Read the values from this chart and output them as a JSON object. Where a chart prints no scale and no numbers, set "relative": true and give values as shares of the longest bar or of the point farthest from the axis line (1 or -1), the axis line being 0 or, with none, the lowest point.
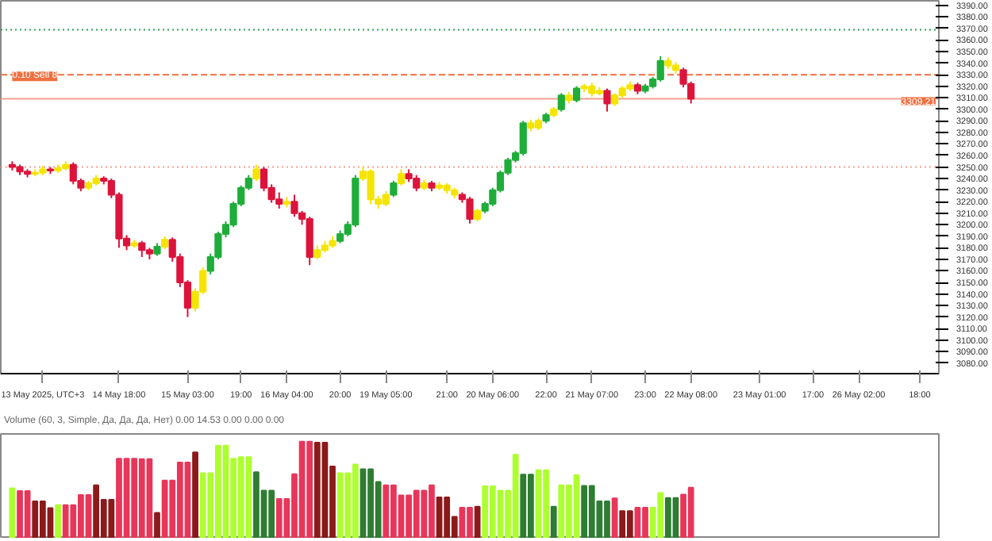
{
  "chart_data": [
    {
      "type": "candlestick",
      "categories": [
        null,
        null,
        null,
        null,
        "13 May 2025, UTC+3",
        null,
        null,
        null,
        null,
        null,
        null,
        null,
        null,
        null,
        "14 May 18:00",
        null,
        null,
        null,
        null,
        null,
        null,
        null,
        null,
        "15 May 03:00",
        null,
        null,
        null,
        null,
        null,
        null,
        "19:00",
        null,
        null,
        null,
        null,
        null,
        "16 May 04:00",
        null,
        null,
        null,
        null,
        null,
        null,
        "20:00",
        null,
        null,
        null,
        null,
        null,
        "19 May 05:00",
        null,
        null,
        null,
        null,
        null,
        null,
        null,
        "21:00",
        null,
        null,
        null,
        null,
        null,
        "20 May 06:00",
        null,
        null,
        null,
        null,
        null,
        null,
        "22:00",
        null,
        null,
        null,
        null,
        null,
        "21 May 07:00",
        null,
        null,
        null,
        null,
        null,
        null,
        "23:00",
        null,
        null,
        null,
        null,
        null,
        "22 May 08:00",
        null,
        null,
        null,
        null,
        null,
        null,
        null,
        null,
        "23 May 01:00",
        null,
        null,
        null,
        null,
        null,
        null,
        "17:00",
        null,
        null,
        null,
        null,
        null,
        "26 May 02:00",
        null,
        null,
        null,
        null,
        null,
        null,
        null,
        "18:00",
        null,
        null
      ],
      "ohlc": [
        [
          3252,
          3255,
          3247,
          3250
        ],
        [
          3250,
          3252,
          3243,
          3246
        ],
        [
          3246,
          3248,
          3241,
          3244
        ],
        [
          3244,
          3248,
          3242,
          3245
        ],
        [
          3245,
          3251,
          3243,
          3248
        ],
        [
          3248,
          3250,
          3244,
          3247
        ],
        [
          3247,
          3252,
          3245,
          3249
        ],
        [
          3249,
          3255,
          3247,
          3252
        ],
        [
          3252,
          3254,
          3235,
          3238
        ],
        [
          3238,
          3240,
          3229,
          3232
        ],
        [
          3232,
          3238,
          3230,
          3236
        ],
        [
          3236,
          3243,
          3234,
          3240
        ],
        [
          3240,
          3242,
          3235,
          3238
        ],
        [
          3238,
          3240,
          3223,
          3226
        ],
        [
          3226,
          3228,
          3180,
          3188
        ],
        [
          3188,
          3191,
          3178,
          3182
        ],
        [
          3182,
          3187,
          3180,
          3184
        ],
        [
          3184,
          3186,
          3172,
          3178
        ],
        [
          3178,
          3180,
          3170,
          3175
        ],
        [
          3175,
          3184,
          3173,
          3181
        ],
        [
          3181,
          3190,
          3179,
          3187
        ],
        [
          3187,
          3189,
          3168,
          3172
        ],
        [
          3172,
          3175,
          3146,
          3150
        ],
        [
          3150,
          3152,
          3120,
          3128
        ],
        [
          3128,
          3145,
          3125,
          3142
        ],
        [
          3142,
          3163,
          3140,
          3160
        ],
        [
          3160,
          3175,
          3157,
          3172
        ],
        [
          3172,
          3194,
          3170,
          3192
        ],
        [
          3192,
          3203,
          3189,
          3200
        ],
        [
          3200,
          3220,
          3198,
          3218
        ],
        [
          3218,
          3234,
          3216,
          3232
        ],
        [
          3232,
          3243,
          3230,
          3240
        ],
        [
          3240,
          3252,
          3238,
          3248
        ],
        [
          3248,
          3250,
          3229,
          3232
        ],
        [
          3232,
          3235,
          3219,
          3222
        ],
        [
          3222,
          3228,
          3214,
          3218
        ],
        [
          3218,
          3224,
          3215,
          3220
        ],
        [
          3220,
          3226,
          3207,
          3210
        ],
        [
          3210,
          3212,
          3200,
          3205
        ],
        [
          3205,
          3207,
          3165,
          3172
        ],
        [
          3172,
          3182,
          3170,
          3178
        ],
        [
          3178,
          3186,
          3176,
          3182
        ],
        [
          3182,
          3190,
          3180,
          3186
        ],
        [
          3186,
          3195,
          3184,
          3192
        ],
        [
          3192,
          3203,
          3190,
          3200
        ],
        [
          3200,
          3243,
          3198,
          3240
        ],
        [
          3240,
          3250,
          3238,
          3246
        ],
        [
          3246,
          3248,
          3218,
          3222
        ],
        [
          3222,
          3225,
          3214,
          3218
        ],
        [
          3218,
          3229,
          3216,
          3226
        ],
        [
          3226,
          3238,
          3224,
          3236
        ],
        [
          3236,
          3248,
          3234,
          3244
        ],
        [
          3244,
          3248,
          3237,
          3240
        ],
        [
          3240,
          3243,
          3229,
          3232
        ],
        [
          3232,
          3239,
          3230,
          3236
        ],
        [
          3236,
          3238,
          3229,
          3232
        ],
        [
          3232,
          3237,
          3230,
          3234
        ],
        [
          3234,
          3236,
          3227,
          3230
        ],
        [
          3230,
          3232,
          3223,
          3226
        ],
        [
          3226,
          3228,
          3219,
          3222
        ],
        [
          3222,
          3224,
          3201,
          3205
        ],
        [
          3205,
          3214,
          3203,
          3212
        ],
        [
          3212,
          3220,
          3210,
          3218
        ],
        [
          3218,
          3232,
          3216,
          3230
        ],
        [
          3230,
          3247,
          3228,
          3245
        ],
        [
          3245,
          3258,
          3243,
          3256
        ],
        [
          3256,
          3264,
          3254,
          3262
        ],
        [
          3262,
          3290,
          3260,
          3288
        ],
        [
          3288,
          3291,
          3281,
          3284
        ],
        [
          3284,
          3292,
          3282,
          3290
        ],
        [
          3290,
          3297,
          3288,
          3295
        ],
        [
          3295,
          3302,
          3293,
          3300
        ],
        [
          3300,
          3314,
          3298,
          3312
        ],
        [
          3312,
          3315,
          3305,
          3308
        ],
        [
          3308,
          3320,
          3306,
          3318
        ],
        [
          3318,
          3322,
          3315,
          3320
        ],
        [
          3320,
          3323,
          3311,
          3314
        ],
        [
          3314,
          3319,
          3312,
          3316
        ],
        [
          3316,
          3318,
          3298,
          3305
        ],
        [
          3305,
          3314,
          3303,
          3312
        ],
        [
          3312,
          3320,
          3310,
          3318
        ],
        [
          3318,
          3324,
          3316,
          3321
        ],
        [
          3321,
          3323,
          3313,
          3316
        ],
        [
          3316,
          3322,
          3314,
          3320
        ],
        [
          3320,
          3328,
          3318,
          3326
        ],
        [
          3326,
          3346,
          3324,
          3342
        ],
        [
          3342,
          3345,
          3335,
          3338
        ],
        [
          3338,
          3341,
          3331,
          3334
        ],
        [
          3334,
          3336,
          3319,
          3322
        ],
        [
          3322,
          3324,
          3305,
          3309.21
        ],
        null,
        null,
        null,
        null,
        null,
        null,
        null,
        null,
        null,
        null,
        null,
        null,
        null,
        null,
        null,
        null,
        null,
        null,
        null,
        null,
        null,
        null,
        null,
        null,
        null,
        null,
        null,
        null,
        null,
        null,
        null,
        null
      ],
      "colors": [
        "#dc143c",
        "#dc143c",
        "#dc143c",
        "#f5e400",
        "#f5e400",
        "#dc143c",
        "#f5e400",
        "#f5e400",
        "#dc143c",
        "#dc143c",
        "#f5e400",
        "#f5e400",
        "#dc143c",
        "#dc143c",
        "#dc143c",
        "#dc143c",
        "#f5e400",
        "#dc143c",
        "#dc143c",
        "#1fad3a",
        "#f5e400",
        "#dc143c",
        "#dc143c",
        "#dc143c",
        "#f5e400",
        "#f5e400",
        "#1fad3a",
        "#1fad3a",
        "#1fad3a",
        "#1fad3a",
        "#1fad3a",
        "#1fad3a",
        "#f5e400",
        "#dc143c",
        "#dc143c",
        "#dc143c",
        "#f5e400",
        "#dc143c",
        "#dc143c",
        "#dc143c",
        "#f5e400",
        "#f5e400",
        "#f5e400",
        "#1fad3a",
        "#1fad3a",
        "#1fad3a",
        "#f5e400",
        "#f5e400",
        "#f5e400",
        "#f5e400",
        "#1fad3a",
        "#f5e400",
        "#dc143c",
        "#dc143c",
        "#f5e400",
        "#dc143c",
        "#f5e400",
        "#f5e400",
        "#f5e400",
        "#dc143c",
        "#dc143c",
        "#f5e400",
        "#1fad3a",
        "#1fad3a",
        "#1fad3a",
        "#1fad3a",
        "#1fad3a",
        "#1fad3a",
        "#f5e400",
        "#f5e400",
        "#1fad3a",
        "#f5e400",
        "#1fad3a",
        "#f5e400",
        "#1fad3a",
        "#f5e400",
        "#f5e400",
        "#f5e400",
        "#dc143c",
        "#f5e400",
        "#f5e400",
        "#f5e400",
        "#dc143c",
        "#1fad3a",
        "#1fad3a",
        "#1fad3a",
        "#f5e400",
        "#f5e400",
        "#dc143c",
        "#dc143c",
        null,
        null,
        null,
        null,
        null,
        null,
        null,
        null,
        null,
        null,
        null,
        null,
        null,
        null,
        null,
        null,
        null,
        null,
        null,
        null,
        null,
        null,
        null,
        null,
        null,
        null,
        null,
        null,
        null,
        null,
        null,
        null
      ],
      "ylim": [
        3071,
        3394
      ],
      "yticks": [
        {
          "value": 3080,
          "label": "3080.00"
        },
        {
          "value": 3090,
          "label": "3090.00"
        },
        {
          "value": 3100,
          "label": "3100.00"
        },
        {
          "value": 3110,
          "label": "3110.00"
        },
        {
          "value": 3120,
          "label": "3120.00"
        },
        {
          "value": 3130,
          "label": "3130.00"
        },
        {
          "value": 3140,
          "label": "3140.00"
        },
        {
          "value": 3150,
          "label": "3150.00"
        },
        {
          "value": 3160,
          "label": "3160.00"
        },
        {
          "value": 3170,
          "label": "3170.00"
        },
        {
          "value": 3180,
          "label": "3180.00"
        },
        {
          "value": 3190,
          "label": "3190.00"
        },
        {
          "value": 3200,
          "label": "3200.00"
        },
        {
          "value": 3210,
          "label": "3210.00"
        },
        {
          "value": 3220,
          "label": "3220.00"
        },
        {
          "value": 3230,
          "label": "3230.00"
        },
        {
          "value": 3240,
          "label": "3240.00"
        },
        {
          "value": 3250,
          "label": "3250.00"
        },
        {
          "value": 3260,
          "label": "3260.00"
        },
        {
          "value": 3270,
          "label": "3270.00"
        },
        {
          "value": 3280,
          "label": "3280.00"
        },
        {
          "value": 3290,
          "label": "3290.00"
        },
        {
          "value": 3300,
          "label": "3300.00"
        },
        {
          "value": 3310,
          "label": "3310.00"
        },
        {
          "value": 3320,
          "label": "3320.00"
        },
        {
          "value": 3330,
          "label": "3330.00"
        },
        {
          "value": 3340,
          "label": "3340.00"
        },
        {
          "value": 3350,
          "label": "3350.00"
        },
        {
          "value": 3360,
          "label": "3360.00"
        },
        {
          "value": 3370,
          "label": "3370.00"
        },
        {
          "value": 3380,
          "label": "3380.00"
        },
        {
          "value": 3390,
          "label": "3390.00"
        }
      ],
      "ref_lines": [
        {
          "axis": "y",
          "value": 3369,
          "label": null,
          "color": "#2e9e5b",
          "line_style": "dotted"
        },
        {
          "axis": "y",
          "value": 3330,
          "label": "0.10 Sell 8",
          "color": "#f07040",
          "line_style": "dashed"
        },
        {
          "axis": "y",
          "value": 3309.21,
          "label": "3309.21",
          "color": "#f5a090",
          "line_style": "solid"
        },
        {
          "axis": "y",
          "value": 3250,
          "label": null,
          "color": "#f5a090",
          "line_style": "dotted"
        }
      ],
      "grid": false
    },
    {
      "type": "bar",
      "relative": true,
      "title": "Volume (60, 3, Simple, Да, Да, Да, Нет) 0.00 14.53 0.00 0.00 0.00",
      "categories": [
        null,
        null,
        null,
        null,
        null,
        null,
        null,
        null,
        null,
        null,
        null,
        null,
        null,
        null,
        null,
        null,
        null,
        null,
        null,
        null,
        null,
        null,
        null,
        null,
        null,
        null,
        null,
        null,
        null,
        null,
        null,
        null,
        null,
        null,
        null,
        null,
        null,
        null,
        null,
        null,
        null,
        null,
        null,
        null,
        null,
        null,
        null,
        null,
        null,
        null,
        null,
        null,
        null,
        null,
        null,
        null,
        null,
        null,
        null,
        null,
        null,
        null,
        null,
        null,
        null,
        null,
        null,
        null,
        null,
        null,
        null,
        null,
        null,
        null,
        null,
        null,
        null,
        null,
        null,
        null,
        null,
        null,
        null,
        null,
        null,
        null,
        null,
        null,
        null,
        null,
        null,
        null,
        null,
        null,
        null,
        null,
        null,
        null,
        null,
        null,
        null,
        null,
        null,
        null,
        null,
        null,
        null,
        null,
        null,
        null,
        null,
        null,
        null,
        null,
        null,
        null,
        null,
        null,
        null,
        null,
        null,
        null
      ],
      "values": [
        0.52,
        0.49,
        0.49,
        0.385,
        0.385,
        0.315,
        0.345,
        0.345,
        0.345,
        0.45,
        0.45,
        0.55,
        0.4,
        0.4,
        0.825,
        0.825,
        0.825,
        0.82,
        0.82,
        0.265,
        0.6,
        0.6,
        0.785,
        0.785,
        0.89,
        0.675,
        0.675,
        0.96,
        0.96,
        0.825,
        0.84,
        0.84,
        0.685,
        0.495,
        0.495,
        0.41,
        0.41,
        0.665,
        1,
        1,
        0.99,
        0.99,
        0.745,
        0.675,
        0.675,
        0.765,
        0.715,
        0.715,
        0.585,
        0.55,
        0.55,
        0.445,
        0.445,
        0.495,
        0.495,
        0.55,
        0.425,
        0.425,
        0.225,
        0.32,
        0.32,
        0.33,
        0.54,
        0.54,
        0.495,
        0.495,
        0.865,
        0.66,
        0.66,
        0.705,
        0.705,
        0.33,
        0.55,
        0.55,
        0.655,
        0.545,
        0.545,
        0.385,
        0.385,
        0.415,
        0.285,
        0.285,
        0.32,
        0.32,
        0.32,
        0.47,
        0.42,
        0.42,
        0.455,
        0.525,
        null,
        null,
        null,
        null,
        null,
        null,
        null,
        null,
        null,
        null,
        null,
        null,
        null,
        null,
        null,
        null,
        null,
        null,
        null,
        null,
        null,
        null,
        null,
        null,
        null,
        null,
        null,
        null,
        null,
        null,
        null,
        null
      ],
      "colors": [
        "#adff2f",
        "#e8365a",
        "#e8365a",
        "#8b1a1a",
        "#8b1a1a",
        "#8b1a1a",
        "#adff2f",
        "#e8365a",
        "#e8365a",
        "#e8365a",
        "#e8365a",
        "#8b1a1a",
        "#8b1a1a",
        "#8b1a1a",
        "#e8365a",
        "#e8365a",
        "#e8365a",
        "#e8365a",
        "#e8365a",
        "#8b1a1a",
        "#e8365a",
        "#e8365a",
        "#e8365a",
        "#e8365a",
        "#8b1a1a",
        "#adff2f",
        "#adff2f",
        "#adff2f",
        "#adff2f",
        "#adff2f",
        "#adff2f",
        "#adff2f",
        "#2e7d32",
        "#2e7d32",
        "#2e7d32",
        "#e8365a",
        "#e8365a",
        "#e8365a",
        "#e8365a",
        "#e8365a",
        "#8b1a1a",
        "#8b1a1a",
        "#8b1a1a",
        "#adff2f",
        "#adff2f",
        "#adff2f",
        "#2e7d32",
        "#2e7d32",
        "#2e7d32",
        "#e8365a",
        "#e8365a",
        "#e8365a",
        "#e8365a",
        "#e8365a",
        "#e8365a",
        "#e8365a",
        "#8b1a1a",
        "#8b1a1a",
        "#8b1a1a",
        "#e8365a",
        "#e8365a",
        "#8b1a1a",
        "#adff2f",
        "#adff2f",
        "#adff2f",
        "#adff2f",
        "#adff2f",
        "#2e7d32",
        "#2e7d32",
        "#adff2f",
        "#adff2f",
        "#2e7d32",
        "#adff2f",
        "#adff2f",
        "#adff2f",
        "#2e7d32",
        "#2e7d32",
        "#2e7d32",
        "#2e7d32",
        "#e8365a",
        "#8b1a1a",
        "#8b1a1a",
        "#e8365a",
        "#e8365a",
        "#adff2f",
        "#adff2f",
        "#2e7d32",
        "#2e7d32",
        "#e8365a",
        "#e8365a",
        null,
        null,
        null,
        null,
        null,
        null,
        null,
        null,
        null,
        null,
        null,
        null,
        null,
        null,
        null,
        null,
        null,
        null,
        null,
        null,
        null,
        null,
        null,
        null,
        null,
        null,
        null,
        null,
        null,
        null,
        null,
        null
      ]
    }
  ]
}
